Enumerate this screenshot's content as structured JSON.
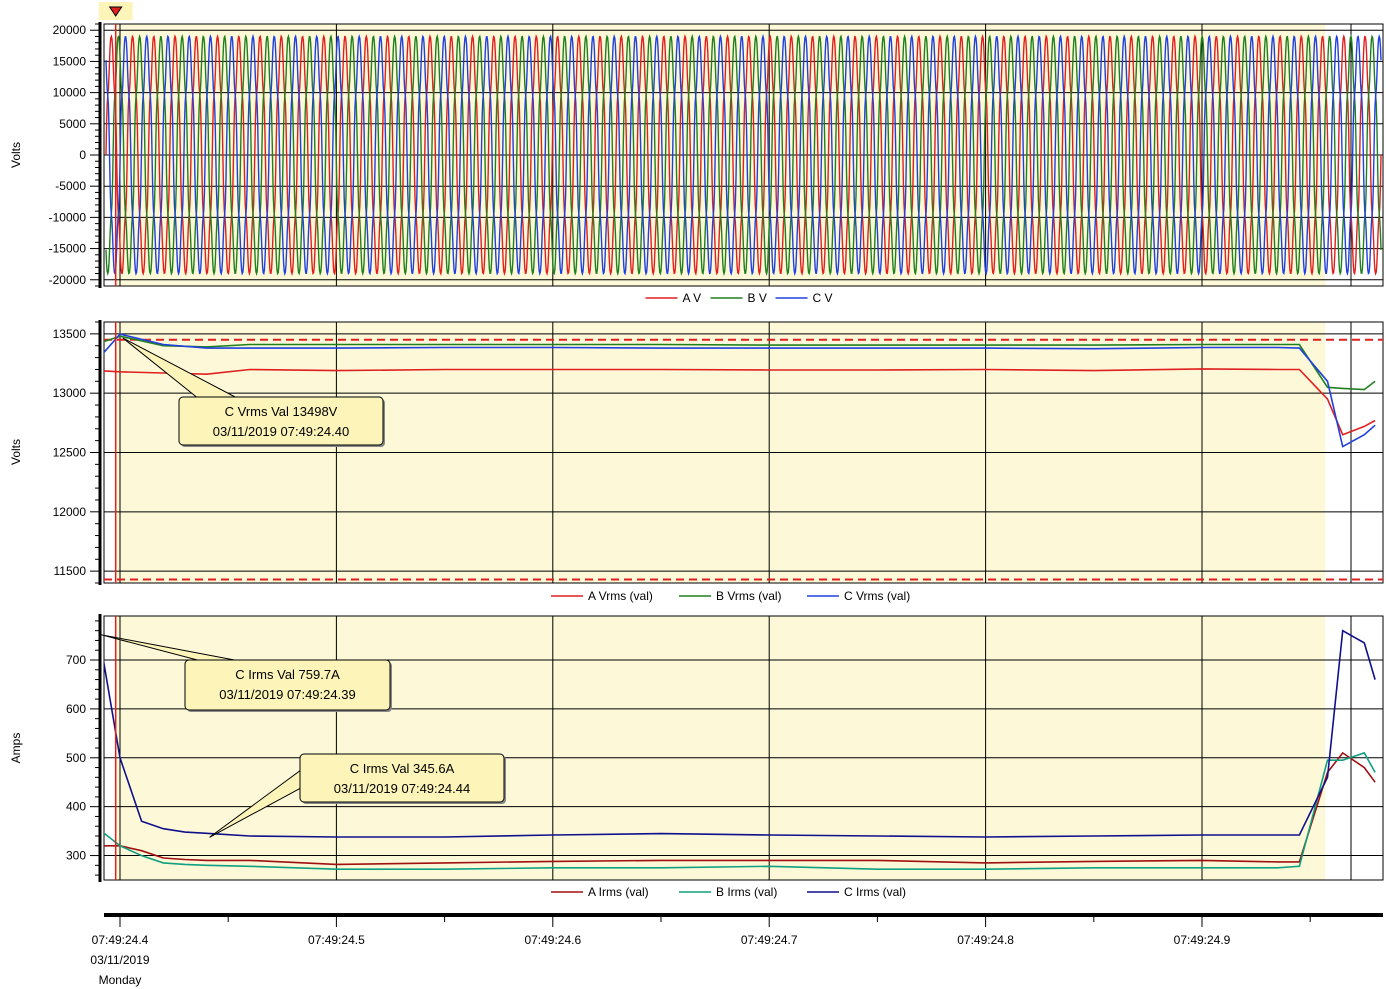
{
  "chart_data": [
    {
      "id": "voltage-waveform",
      "type": "line",
      "ylabel": "Volts",
      "ylim": [
        -21000,
        21000
      ],
      "yticks": [
        20000,
        15000,
        10000,
        5000,
        0,
        -5000,
        -10000,
        -15000,
        -20000
      ],
      "ytick_labels": [
        "20000",
        "15000",
        "10000",
        "5000",
        "0",
        "-5000",
        "-10000",
        "-15000",
        "-20000"
      ],
      "waveform": {
        "amplitude": 19200,
        "cycles": 60,
        "phase_offsets_deg": [
          0,
          -120,
          120
        ]
      },
      "series": [
        {
          "name": "A V",
          "color": "#e02020"
        },
        {
          "name": "B V",
          "color": "#208020"
        },
        {
          "name": "C V",
          "color": "#2040e0"
        }
      ],
      "legend_placement": "bottom-center",
      "grid": true
    },
    {
      "id": "rms-voltage",
      "type": "line",
      "ylabel": "Volts",
      "ylim": [
        11400,
        13600
      ],
      "yticks": [
        13500,
        13000,
        12500,
        12000,
        11500
      ],
      "ytick_labels": [
        "13500",
        "13000",
        "12500",
        "12000",
        "11500"
      ],
      "limit_lines": [
        13450,
        11430
      ],
      "x": [
        24.39,
        24.4,
        24.42,
        24.44,
        24.46,
        24.5,
        24.55,
        24.6,
        24.65,
        24.7,
        24.75,
        24.8,
        24.85,
        24.9,
        24.935,
        24.945,
        24.958,
        24.965,
        24.975,
        24.98
      ],
      "series": [
        {
          "name": "A Vrms (val)",
          "color": "#e02020",
          "values": [
            13190,
            13180,
            13170,
            13160,
            13200,
            13190,
            13200,
            13200,
            13200,
            13195,
            13195,
            13200,
            13190,
            13205,
            13200,
            13200,
            12950,
            12650,
            12720,
            12770
          ]
        },
        {
          "name": "B Vrms (val)",
          "color": "#208020",
          "values": [
            13420,
            13480,
            13400,
            13390,
            13410,
            13410,
            13410,
            13410,
            13410,
            13405,
            13405,
            13405,
            13405,
            13410,
            13410,
            13410,
            13050,
            13040,
            13030,
            13100
          ]
        },
        {
          "name": "C Vrms (val)",
          "color": "#2040e0",
          "values": [
            13290,
            13498,
            13410,
            13380,
            13380,
            13380,
            13385,
            13385,
            13380,
            13380,
            13380,
            13380,
            13375,
            13385,
            13385,
            13380,
            13100,
            12550,
            12650,
            12730
          ]
        }
      ],
      "annotations": [
        {
          "text_line1": "C Vrms Val 13498V",
          "text_line2": "03/11/2019 07:49:24.40",
          "x": 24.4,
          "y": 13498
        }
      ],
      "legend_placement": "bottom-center",
      "grid": true
    },
    {
      "id": "rms-current",
      "type": "line",
      "ylabel": "Amps",
      "ylim": [
        250,
        790
      ],
      "yticks": [
        700,
        600,
        500,
        400,
        300
      ],
      "ytick_labels": [
        "700",
        "600",
        "500",
        "400",
        "300"
      ],
      "x": [
        24.39,
        24.4,
        24.41,
        24.42,
        24.43,
        24.44,
        24.46,
        24.5,
        24.55,
        24.6,
        24.65,
        24.7,
        24.75,
        24.8,
        24.85,
        24.9,
        24.935,
        24.945,
        24.958,
        24.965,
        24.975,
        24.98
      ],
      "series": [
        {
          "name": "A Irms (val)",
          "color": "#a01010",
          "values": [
            320,
            320,
            310,
            295,
            292,
            290,
            290,
            282,
            285,
            288,
            290,
            290,
            290,
            285,
            288,
            290,
            287,
            287,
            470,
            510,
            480,
            450
          ]
        },
        {
          "name": "B Irms (val)",
          "color": "#10a080",
          "values": [
            355,
            320,
            300,
            285,
            282,
            280,
            278,
            272,
            272,
            275,
            275,
            278,
            272,
            272,
            275,
            275,
            275,
            278,
            495,
            495,
            510,
            470
          ]
        },
        {
          "name": "C Irms (val)",
          "color": "#10108c",
          "values": [
            759.7,
            500,
            370,
            355,
            348,
            345.6,
            340,
            338,
            338,
            342,
            345,
            342,
            340,
            338,
            340,
            342,
            342,
            342,
            460,
            760,
            735,
            660
          ]
        }
      ],
      "annotations": [
        {
          "text_line1": "C Irms Val 759.7A",
          "text_line2": "03/11/2019 07:49:24.39",
          "x": 24.39,
          "y": 759.7
        },
        {
          "text_line1": "C Irms Val 345.6A",
          "text_line2": "03/11/2019 07:49:24.44",
          "x": 24.44,
          "y": 345.6
        }
      ],
      "legend_placement": "bottom-center",
      "grid": true
    }
  ],
  "time_axis": {
    "xlim": [
      24.39,
      24.98
    ],
    "ticks": [
      24.4,
      24.5,
      24.6,
      24.7,
      24.8,
      24.9
    ],
    "tick_labels": [
      "07:49:24.4",
      "07:49:24.5",
      "07:49:24.6",
      "07:49:24.7",
      "07:49:24.8",
      "07:49:24.9"
    ],
    "first_date": "03/11/2019",
    "first_day": "Monday",
    "minor_ticks": [
      24.45,
      24.55,
      24.65,
      24.75,
      24.85,
      24.95
    ]
  },
  "cursor": {
    "x": 24.398,
    "color": "#e02020",
    "marker_color": "#e02020"
  },
  "highlight_band": {
    "from": 24.398,
    "to": 24.957,
    "color": "#fcf8d8"
  },
  "colors": {
    "grid": "#000000",
    "background": "#ffffff",
    "callout_fill": "#fcf4b8",
    "limit_line": "#e02020"
  }
}
